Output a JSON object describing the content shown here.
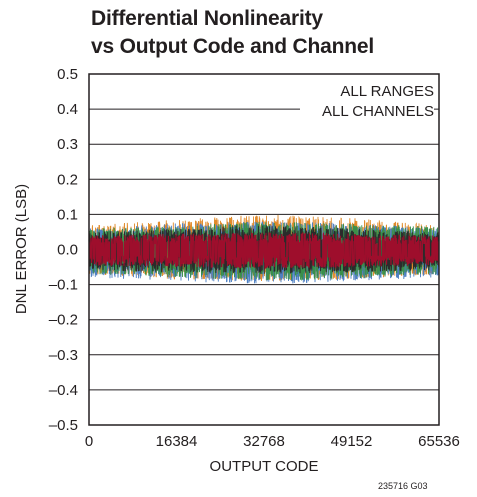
{
  "title_lines": [
    "Differential Nonlinearity",
    "vs Output Code and Channel"
  ],
  "annotation_lines": [
    "ALL RANGES",
    "ALL CHANNELS"
  ],
  "figure_id": "235716 G03",
  "chart_data": {
    "type": "line",
    "title": "Differential Nonlinearity vs Output Code and Channel",
    "xlabel": "OUTPUT CODE",
    "ylabel": "DNL ERROR (LSB)",
    "xlim": [
      0,
      65536
    ],
    "ylim": [
      -0.5,
      0.5
    ],
    "x_ticks": [
      0,
      16384,
      32768,
      49152,
      65536
    ],
    "x_tick_labels": [
      "0",
      "16384",
      "32768",
      "49152",
      "65536"
    ],
    "y_ticks": [
      0.5,
      0.4,
      0.3,
      0.2,
      0.1,
      0.0,
      -0.1,
      -0.2,
      -0.3,
      -0.4,
      -0.5
    ],
    "y_tick_labels": [
      "0.5",
      "0.4",
      "0.3",
      "0.2",
      "0.1",
      "0.0",
      "–0.1",
      "–0.2",
      "–0.3",
      "–0.4",
      "–0.5"
    ],
    "grid": true,
    "series": [
      {
        "color": "#e08a2a",
        "envelope": {
          "x": [
            0,
            16384,
            32768,
            49152,
            65536
          ],
          "max": [
            0.07,
            0.085,
            0.1,
            0.09,
            0.07
          ],
          "min": [
            -0.07,
            -0.085,
            -0.09,
            -0.085,
            -0.07
          ]
        }
      },
      {
        "color": "#4d7fc2",
        "envelope": {
          "x": [
            0,
            16384,
            32768,
            49152,
            65536
          ],
          "max": [
            0.06,
            0.075,
            0.08,
            0.075,
            0.06
          ],
          "min": [
            -0.08,
            -0.09,
            -0.1,
            -0.09,
            -0.08
          ]
        }
      },
      {
        "color": "#3a8f4a",
        "envelope": {
          "x": [
            0,
            16384,
            32768,
            49152,
            65536
          ],
          "max": [
            0.06,
            0.07,
            0.08,
            0.075,
            0.065
          ],
          "min": [
            -0.07,
            -0.08,
            -0.09,
            -0.085,
            -0.07
          ]
        }
      },
      {
        "color": "#2b2b2b",
        "envelope": {
          "x": [
            0,
            16384,
            32768,
            49152,
            65536
          ],
          "max": [
            0.05,
            0.06,
            0.07,
            0.06,
            0.05
          ],
          "min": [
            -0.06,
            -0.065,
            -0.07,
            -0.065,
            -0.06
          ]
        }
      },
      {
        "color": "#9e0e2c",
        "envelope": {
          "x": [
            0,
            16384,
            32768,
            49152,
            65536
          ],
          "max": [
            0.04,
            0.045,
            0.05,
            0.045,
            0.04
          ],
          "min": [
            -0.045,
            -0.05,
            -0.055,
            -0.05,
            -0.045
          ]
        }
      }
    ]
  }
}
